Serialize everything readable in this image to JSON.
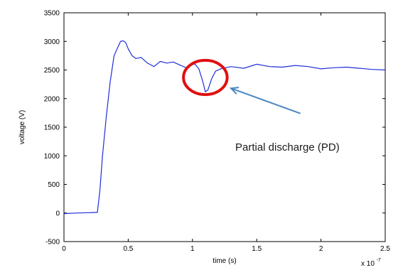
{
  "chart_data": {
    "type": "line",
    "xlabel": "time (s)",
    "ylabel": "voltage (V)",
    "x_multiplier_label": "x 10",
    "x_multiplier_exponent": "-7",
    "xlim": [
      0,
      2.5
    ],
    "ylim": [
      -500,
      3500
    ],
    "x_ticks": [
      "0",
      "0.5",
      "1",
      "1.5",
      "2",
      "2.5"
    ],
    "y_ticks": [
      "-500",
      "0",
      "500",
      "1000",
      "1500",
      "2000",
      "2500",
      "3000",
      "3500"
    ],
    "grid": false,
    "colors": {
      "series": "#1f2fd6",
      "annotation_circle": "#e01010",
      "annotation_arrow": "#4a86c0"
    },
    "series": [
      {
        "x": [
          0,
          0.1,
          0.2,
          0.26,
          0.28,
          0.3,
          0.33,
          0.36,
          0.39,
          0.42,
          0.44,
          0.46,
          0.48,
          0.5,
          0.53,
          0.56,
          0.6,
          0.65,
          0.7,
          0.75,
          0.8,
          0.85,
          0.9,
          0.95,
          1.0,
          1.02,
          1.05,
          1.08,
          1.1,
          1.12,
          1.15,
          1.18,
          1.22,
          1.3,
          1.4,
          1.5,
          1.6,
          1.7,
          1.8,
          1.9,
          2.0,
          2.1,
          2.2,
          2.3,
          2.4,
          2.5
        ],
        "y": [
          -10,
          0,
          5,
          10,
          400,
          1000,
          1700,
          2300,
          2750,
          2900,
          3000,
          3010,
          2980,
          2870,
          2750,
          2700,
          2720,
          2620,
          2560,
          2650,
          2620,
          2640,
          2590,
          2540,
          2600,
          2600,
          2520,
          2300,
          2120,
          2150,
          2350,
          2480,
          2520,
          2560,
          2530,
          2600,
          2560,
          2550,
          2580,
          2560,
          2520,
          2540,
          2550,
          2530,
          2510,
          2500
        ]
      }
    ],
    "annotation": {
      "text": "Partial discharge (PD)",
      "circle_center": [
        1.1,
        2370
      ],
      "circle_radius_x": 0.17,
      "circle_radius_y": 300,
      "arrow_from": [
        1.84,
        1740
      ],
      "arrow_to": [
        1.3,
        2180
      ]
    }
  }
}
